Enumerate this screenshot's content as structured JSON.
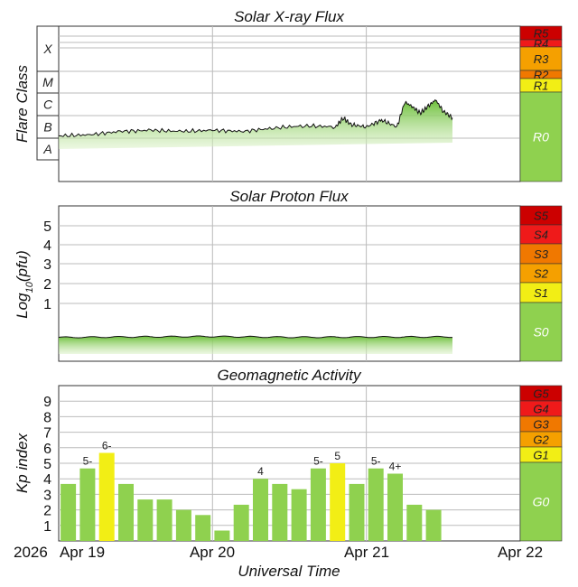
{
  "colors": {
    "green": "#8fd14f",
    "yellow": "#f2ee15",
    "orange": "#f5a000",
    "dark_orange": "#f07800",
    "red": "#ef1a1a",
    "dark_red": "#cc0000",
    "grid": "#bbbbbb",
    "trace": "#111111"
  },
  "x_axis": {
    "label": "Universal Time",
    "year": "2026",
    "ticks": [
      "Apr 19",
      "Apr 20",
      "Apr 21",
      "Apr 22"
    ],
    "data_end_day": 2.56
  },
  "chart_data": [
    {
      "type": "area",
      "title": "Solar X-ray Flux",
      "ylabel": "Flare Class",
      "flare_classes": [
        "X",
        "M",
        "C",
        "B",
        "A"
      ],
      "scale": [
        {
          "label": "R5",
          "color": "#cc0000"
        },
        {
          "label": "R4",
          "color": "#ef1a1a"
        },
        {
          "label": "R3",
          "color": "#f5a000"
        },
        {
          "label": "R2",
          "color": "#f07800"
        },
        {
          "label": "R1",
          "color": "#f2ee15"
        },
        {
          "label": "R0",
          "color": "#8fd14f"
        }
      ],
      "flux_level_series": {
        "name": "",
        "note_units": "fraction of B-class band (0=B bottom, 1=C bottom)",
        "x_days": [
          0.0,
          0.2,
          0.4,
          0.6,
          0.8,
          1.0,
          1.2,
          1.4,
          1.6,
          1.8,
          1.85,
          1.9,
          2.0,
          2.1,
          2.2,
          2.25,
          2.3,
          2.35,
          2.4,
          2.45,
          2.5,
          2.56
        ],
        "values": [
          0.1,
          0.15,
          0.3,
          0.35,
          0.3,
          0.35,
          0.3,
          0.45,
          0.55,
          0.5,
          0.9,
          0.6,
          0.5,
          0.8,
          0.5,
          1.6,
          1.4,
          1.1,
          1.4,
          1.7,
          1.2,
          0.9
        ]
      }
    },
    {
      "type": "area",
      "title": "Solar Proton Flux",
      "ylabel": "Log10(pfu)",
      "y_ticks": [
        "5",
        "4",
        "3",
        "2",
        "1"
      ],
      "scale": [
        {
          "label": "S5",
          "color": "#cc0000"
        },
        {
          "label": "S4",
          "color": "#ef1a1a"
        },
        {
          "label": "S3",
          "color": "#f07800"
        },
        {
          "label": "S2",
          "color": "#f5a000"
        },
        {
          "label": "S1",
          "color": "#f2ee15"
        },
        {
          "label": "S0",
          "color": "#8fd14f"
        }
      ],
      "flux_log_series": {
        "name": "",
        "x_days": [
          0.0,
          0.5,
          1.0,
          1.5,
          2.0,
          2.56
        ],
        "values": [
          -0.75,
          -0.72,
          -0.7,
          -0.74,
          -0.73,
          -0.72
        ]
      }
    },
    {
      "type": "bar",
      "title": "Geomagnetic Activity",
      "ylabel": "Kp index",
      "y_ticks": [
        "9",
        "8",
        "7",
        "6",
        "5",
        "4",
        "3",
        "2",
        "1"
      ],
      "ylim": [
        0,
        10
      ],
      "scale": [
        {
          "label": "G5",
          "color": "#cc0000"
        },
        {
          "label": "G4",
          "color": "#ef1a1a"
        },
        {
          "label": "G3",
          "color": "#f07800"
        },
        {
          "label": "G2",
          "color": "#f5a000"
        },
        {
          "label": "G1",
          "color": "#f2ee15"
        },
        {
          "label": "G0",
          "color": "#8fd14f"
        }
      ],
      "bars": [
        {
          "value": 3.67,
          "label": ""
        },
        {
          "value": 4.67,
          "label": "5-"
        },
        {
          "value": 5.67,
          "label": "6-"
        },
        {
          "value": 3.67,
          "label": ""
        },
        {
          "value": 2.67,
          "label": ""
        },
        {
          "value": 2.67,
          "label": ""
        },
        {
          "value": 2.0,
          "label": ""
        },
        {
          "value": 1.67,
          "label": ""
        },
        {
          "value": 0.67,
          "label": ""
        },
        {
          "value": 2.33,
          "label": ""
        },
        {
          "value": 4.0,
          "label": "4"
        },
        {
          "value": 3.67,
          "label": ""
        },
        {
          "value": 3.33,
          "label": ""
        },
        {
          "value": 4.67,
          "label": "5-"
        },
        {
          "value": 5.0,
          "label": "5"
        },
        {
          "value": 3.67,
          "label": ""
        },
        {
          "value": 4.67,
          "label": "5-"
        },
        {
          "value": 4.33,
          "label": "4+"
        },
        {
          "value": 2.33,
          "label": ""
        },
        {
          "value": 2.0,
          "label": ""
        }
      ]
    }
  ]
}
